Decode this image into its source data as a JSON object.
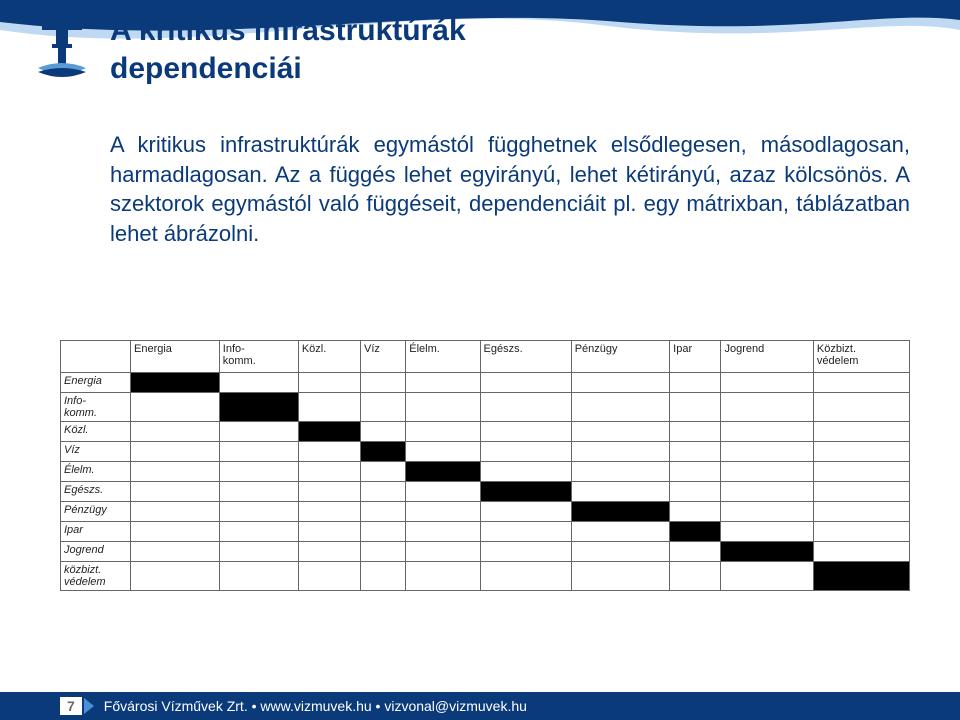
{
  "title_line1": "A kritikus infrastruktúrák",
  "title_line2": "dependenciái",
  "body": "A kritikus infrastruktúrák egymástól függhetnek elsődlegesen, másodlagosan, harmadlagosan. Az a függés lehet egyirányú, lehet kétirányú, azaz kölcsönös. A szektorok egymástól való függéseit, dependenciáit pl. egy mátrixban, táblázatban lehet ábrázolni.",
  "matrix": {
    "columns": [
      "Energia",
      "Info-\nkomm.",
      "Közl.",
      "Víz",
      "Élelm.",
      "Egészs.",
      "Pénzügy",
      "Ipar",
      "Jogrend",
      "Közbizt.\nvédelem"
    ],
    "rows": [
      "Energia",
      "Info-\nkomm.",
      "Közl.",
      "Víz",
      "Élelm.",
      "Egészs.",
      "Pénzügy",
      "Ipar",
      "Jogrend",
      "közbizt.\nvédelem"
    ],
    "filled": [
      [
        0,
        0
      ],
      [
        1,
        1
      ],
      [
        2,
        2
      ],
      [
        3,
        3
      ],
      [
        4,
        4
      ],
      [
        5,
        5
      ],
      [
        6,
        6
      ],
      [
        7,
        7
      ],
      [
        8,
        8
      ],
      [
        9,
        9
      ]
    ],
    "fill_color": "#000000",
    "border_color": "#666666",
    "font_size": 11
  },
  "footer": {
    "page": "7",
    "text": "Fővárosi Vízművek Zrt. • www.vizmuvek.hu • vizvonal@vizmuvek.hu"
  },
  "colors": {
    "primary_blue": "#0a3a7a",
    "wave_light": "#7fb4e8",
    "wave_dark": "#0a3a7a",
    "white": "#ffffff"
  }
}
